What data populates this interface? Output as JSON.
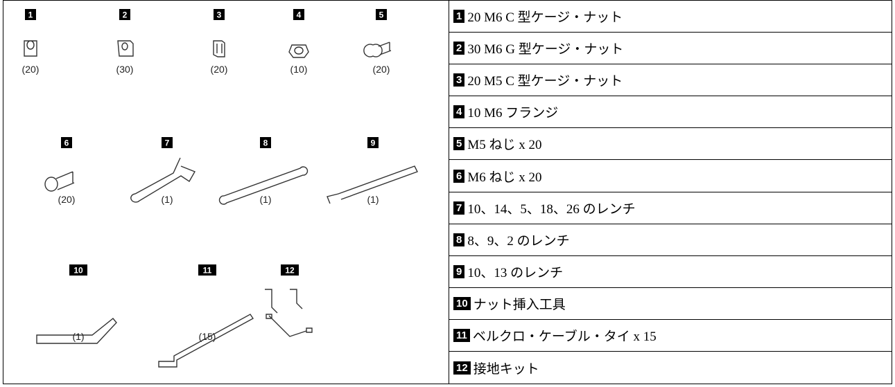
{
  "items": [
    {
      "badge": "1",
      "count": "(20)"
    },
    {
      "badge": "2",
      "count": "(30)"
    },
    {
      "badge": "3",
      "count": "(20)"
    },
    {
      "badge": "4",
      "count": "(10)"
    },
    {
      "badge": "5",
      "count": "(20)"
    },
    {
      "badge": "6",
      "count": "(20)"
    },
    {
      "badge": "7",
      "count": "(1)"
    },
    {
      "badge": "8",
      "count": "(1)"
    },
    {
      "badge": "9",
      "count": "(1)"
    },
    {
      "badge": "10",
      "count": "(1)"
    },
    {
      "badge": "11",
      "count": "(15)"
    },
    {
      "badge": "12"
    }
  ],
  "rows": [
    {
      "badge": "1",
      "text": "20 M6 C 型ケージ・ナット"
    },
    {
      "badge": "2",
      "text": "30 M6 G 型ケージ・ナット"
    },
    {
      "badge": "3",
      "text": "20 M5 C 型ケージ・ナット"
    },
    {
      "badge": "4",
      "text": "10 M6 フランジ"
    },
    {
      "badge": "5",
      "text": "M5 ねじ x 20"
    },
    {
      "badge": "6",
      "text": "M6 ねじ x 20"
    },
    {
      "badge": "7",
      "text": "10、14、5、18、26 のレンチ"
    },
    {
      "badge": "8",
      "text": "8、9、2 のレンチ"
    },
    {
      "badge": "9",
      "text": "10、13 のレンチ"
    },
    {
      "badge": "10",
      "text": "ナット挿入工具"
    },
    {
      "badge": "11",
      "text": "ベルクロ・ケーブル・タイ x 15"
    },
    {
      "badge": "12",
      "text": "接地キット"
    }
  ]
}
